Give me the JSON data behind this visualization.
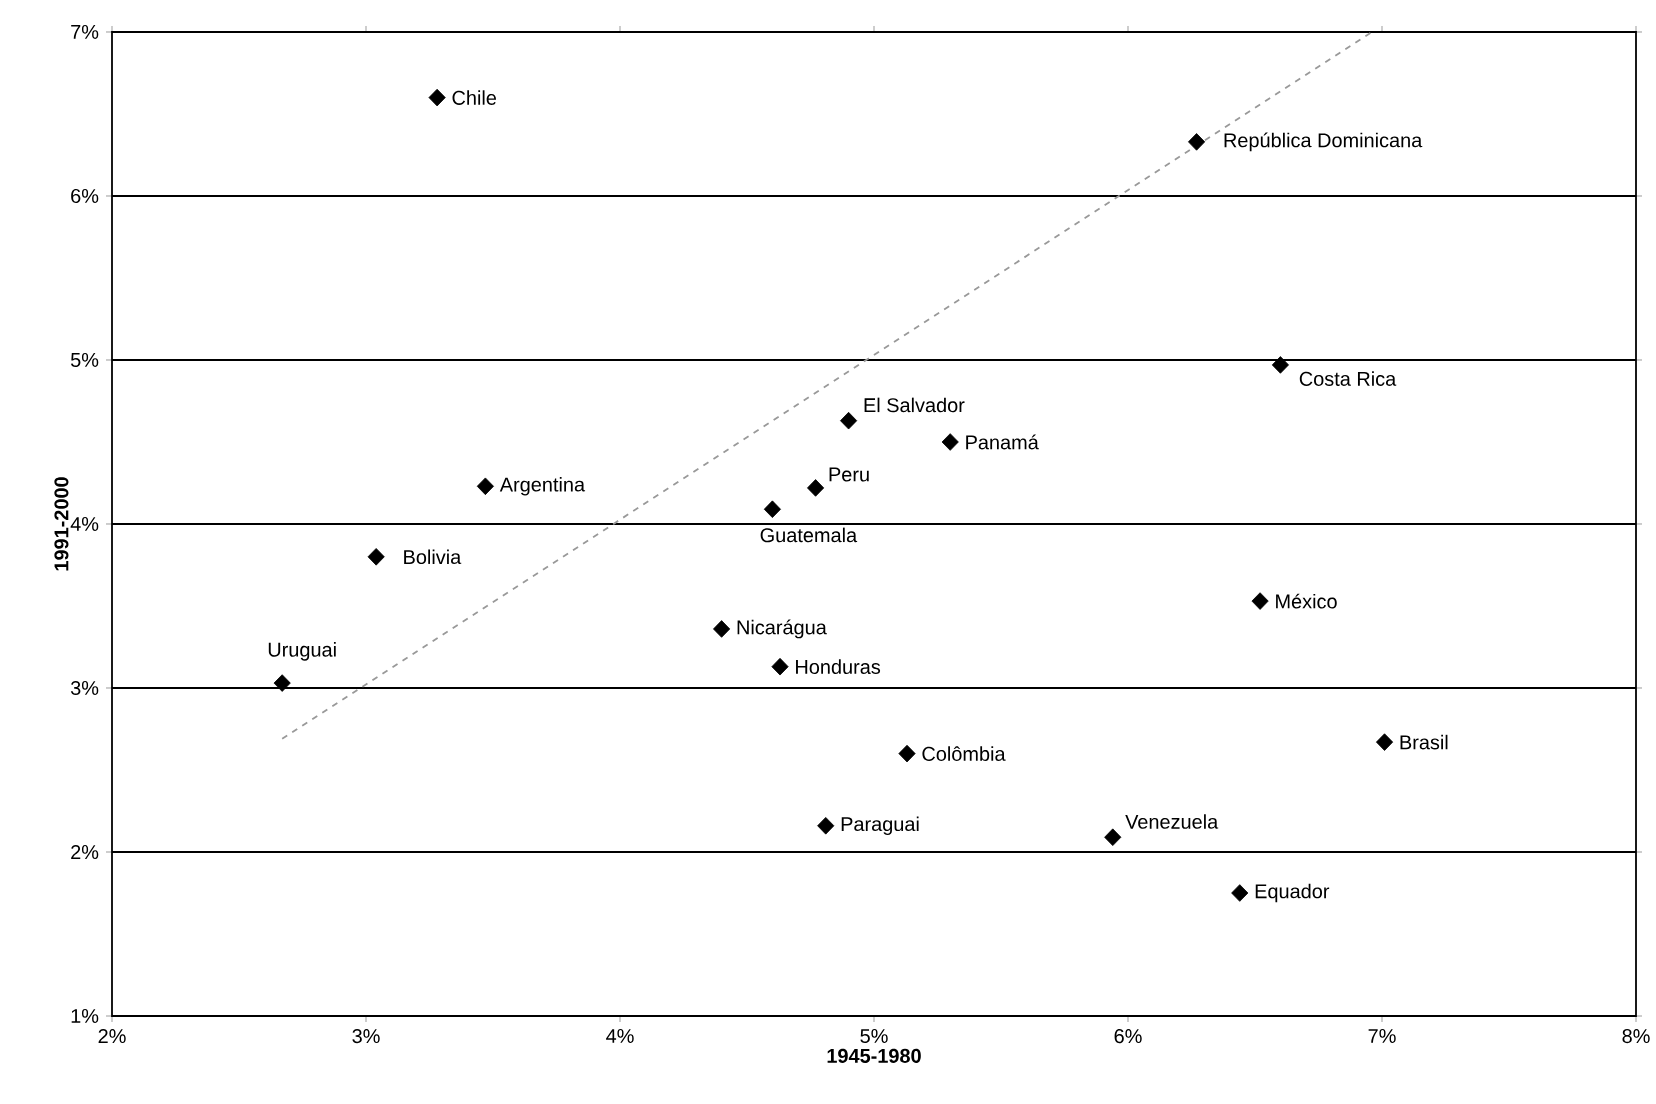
{
  "chart_data": {
    "type": "scatter",
    "xlabel": "1945-1980",
    "ylabel": "1991-2000",
    "xlim": [
      2,
      8
    ],
    "ylim": [
      1,
      7
    ],
    "xticks": [
      {
        "value": 2,
        "label": "2%"
      },
      {
        "value": 3,
        "label": "3%"
      },
      {
        "value": 4,
        "label": "4%"
      },
      {
        "value": 5,
        "label": "5%"
      },
      {
        "value": 6,
        "label": "6%"
      },
      {
        "value": 7,
        "label": "7%"
      },
      {
        "value": 8,
        "label": "8%"
      }
    ],
    "yticks": [
      {
        "value": 1,
        "label": "1%"
      },
      {
        "value": 2,
        "label": "2%"
      },
      {
        "value": 3,
        "label": "3%"
      },
      {
        "value": 4,
        "label": "4%"
      },
      {
        "value": 5,
        "label": "5%"
      },
      {
        "value": 6,
        "label": "6%"
      },
      {
        "value": 7,
        "label": "7%"
      }
    ],
    "grid": "y",
    "marker": "diamond",
    "series": [
      {
        "color": "#000000",
        "x": [
          3.28,
          6.27,
          6.6,
          4.9,
          5.3,
          4.77,
          4.6,
          3.47,
          3.04,
          2.67,
          4.4,
          4.63,
          4.81,
          6.52,
          5.13,
          7.01,
          5.94,
          6.44
        ],
        "values": [
          6.6,
          6.33,
          4.97,
          4.63,
          4.5,
          4.22,
          4.09,
          4.23,
          3.8,
          3.03,
          3.36,
          3.13,
          2.16,
          3.53,
          2.6,
          2.67,
          2.09,
          1.75
        ]
      },
      {
        "type": "line",
        "color": "#999999",
        "line_style": "dashed",
        "marker": "none",
        "x": [
          2.67,
          6.96
        ],
        "values": [
          2.69,
          7.0
        ]
      }
    ],
    "annotations": [
      {
        "text": "Chile",
        "x": 3.28,
        "y": 6.6
      },
      {
        "text": "República Dominicana",
        "x": 6.27,
        "y": 6.33
      },
      {
        "text": "Costa Rica",
        "x": 6.6,
        "y": 4.97
      },
      {
        "text": "El Salvador",
        "x": 4.9,
        "y": 4.63
      },
      {
        "text": "Panamá",
        "x": 5.3,
        "y": 4.5
      },
      {
        "text": "Peru",
        "x": 4.77,
        "y": 4.22
      },
      {
        "text": "Guatemala",
        "x": 4.6,
        "y": 4.09
      },
      {
        "text": "Argentina",
        "x": 3.47,
        "y": 4.23
      },
      {
        "text": "Bolivia",
        "x": 3.04,
        "y": 3.8
      },
      {
        "text": "Uruguai",
        "x": 2.67,
        "y": 3.03
      },
      {
        "text": "Nicarágua",
        "x": 4.4,
        "y": 3.36
      },
      {
        "text": "Honduras",
        "x": 4.63,
        "y": 3.13
      },
      {
        "text": "Paraguai",
        "x": 4.81,
        "y": 2.16
      },
      {
        "text": "México",
        "x": 6.52,
        "y": 3.53
      },
      {
        "text": "Colômbia",
        "x": 5.13,
        "y": 2.6
      },
      {
        "text": "Brasil",
        "x": 7.01,
        "y": 2.67
      },
      {
        "text": "Venezuela",
        "x": 5.94,
        "y": 2.09
      },
      {
        "text": "Equador",
        "x": 6.44,
        "y": 1.75
      }
    ]
  }
}
